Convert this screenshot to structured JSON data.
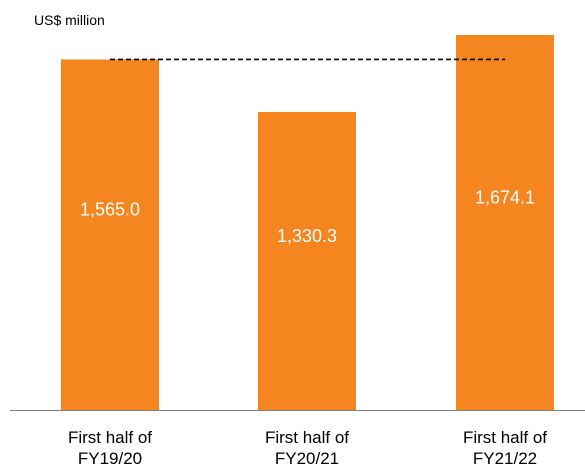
{
  "chart_data": {
    "type": "bar",
    "unit_label": "US$ million",
    "categories": [
      [
        "First half of",
        "FY19/20"
      ],
      [
        "First half of",
        "FY20/21"
      ],
      [
        "First half of",
        "FY21/22"
      ]
    ],
    "values": [
      1565.0,
      1330.3,
      1674.1
    ],
    "value_labels": [
      "1,565.0",
      "1,330.3",
      "1,674.1"
    ],
    "reference_line": {
      "value": 1565.0,
      "style": "dashed"
    },
    "ylim": [
      0,
      1674.1
    ],
    "grid": false,
    "legend": "none",
    "colors": {
      "bar": "#F5861F",
      "bar_label": "#FFFFFF",
      "axis": "#7F7F7F",
      "reference_line": "#000000"
    }
  }
}
